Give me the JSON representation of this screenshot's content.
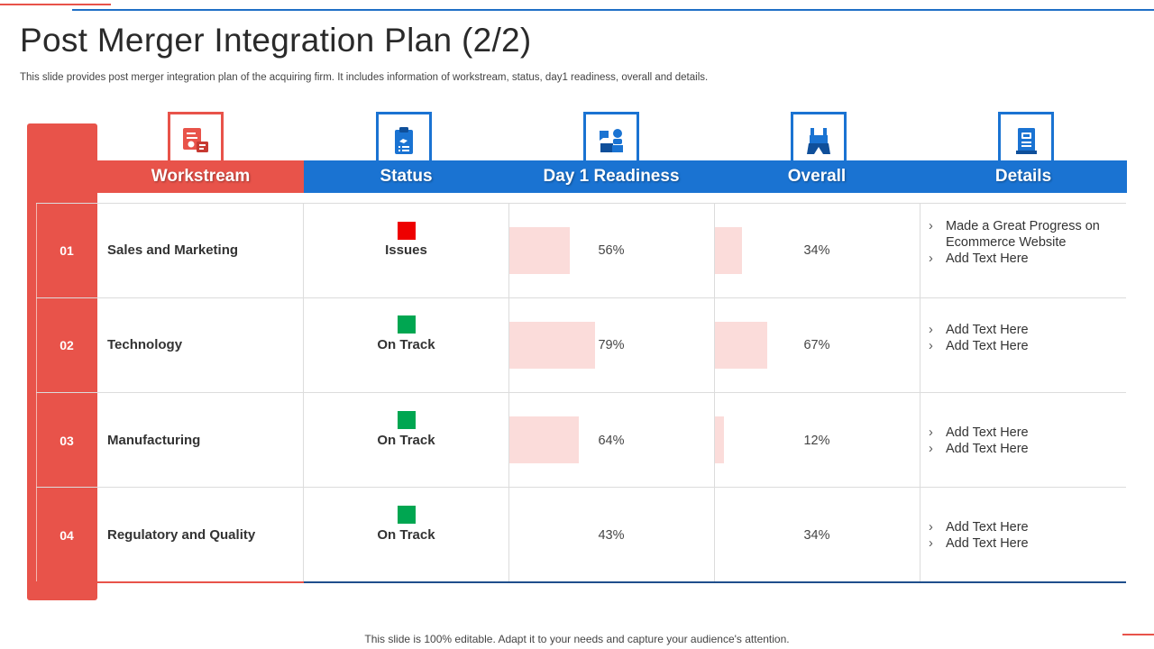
{
  "title": "Post Merger Integration Plan (2/2)",
  "subtitle": "This slide provides post merger integration plan of the acquiring firm. It includes information of workstream, status, day1 readiness, overall and details.",
  "headers": {
    "workstream": "Workstream",
    "status": "Status",
    "day1": "Day 1 Readiness",
    "overall": "Overall",
    "details": "Details"
  },
  "colors": {
    "accent_red": "#e8534a",
    "accent_blue": "#1a73d2",
    "issues": "#ee0000",
    "on_track": "#00a651",
    "bar": "#fbdcda"
  },
  "rows": [
    {
      "num": "01",
      "workstream": "Sales and Marketing",
      "status": "Issues",
      "day1": "56%",
      "day1_value": 0.56,
      "overall": "34%",
      "overall_value": 0.34,
      "details": [
        "Made a Great Progress on Ecommerce Website",
        "Add Text Here"
      ]
    },
    {
      "num": "02",
      "workstream": "Technology",
      "status": "On Track",
      "day1": "79%",
      "day1_value": 0.79,
      "overall": "67%",
      "overall_value": 0.67,
      "details": [
        "Add Text Here",
        "Add Text Here"
      ]
    },
    {
      "num": "03",
      "workstream": "Manufacturing",
      "status": "On Track",
      "day1": "64%",
      "day1_value": 0.64,
      "overall": "12%",
      "overall_value": 0.12,
      "details": [
        "Add Text Here",
        "Add Text Here"
      ]
    },
    {
      "num": "04",
      "workstream": "Regulatory and Quality",
      "status": "On Track",
      "day1": "43%",
      "day1_value": 0.43,
      "overall": "34%",
      "overall_value": 0.34,
      "details": [
        "Add Text Here",
        "Add Text Here"
      ]
    }
  ],
  "footer": "This slide is 100% editable. Adapt it to your needs and capture your audience's attention."
}
